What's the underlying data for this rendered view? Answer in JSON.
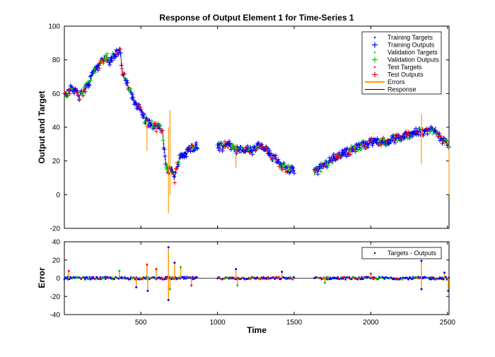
{
  "chart_data": [
    {
      "type": "scatter",
      "title": "Response of Output Element 1 for Time-Series 1",
      "xlabel": "",
      "ylabel": "Output and Target",
      "xlim": [
        1,
        2510
      ],
      "ylim": [
        -20,
        100
      ],
      "x_ticks": [],
      "y_ticks": [
        -20,
        0,
        20,
        40,
        60,
        80,
        100
      ],
      "grid": false,
      "legend_position": "top-right",
      "legend": [
        {
          "label": "Training Targets",
          "marker": "dot",
          "color": "#0000ff"
        },
        {
          "label": "Training Outputs",
          "marker": "plus",
          "color": "#0000ff"
        },
        {
          "label": "Validation Targets",
          "marker": "dot",
          "color": "#00cc00"
        },
        {
          "label": "Validation Outputs",
          "marker": "plus",
          "color": "#00cc00"
        },
        {
          "label": "Test Targets",
          "marker": "dot",
          "color": "#ff0000"
        },
        {
          "label": "Test Outputs",
          "marker": "plus",
          "color": "#ff0000"
        },
        {
          "label": "Errors",
          "marker": "line",
          "color": "#ff9900"
        },
        {
          "label": "Response",
          "marker": "line",
          "color": "#000000"
        }
      ],
      "segments": [
        {
          "x": [
            1,
            25,
            50,
            80,
            100,
            130,
            160,
            190,
            220,
            250,
            280,
            300,
            320,
            350,
            365,
            380,
            400,
            420,
            450,
            480,
            500,
            530,
            560,
            590,
            620,
            640,
            660,
            680,
            700,
            720,
            740,
            760,
            790,
            820,
            850,
            870
          ],
          "y": [
            60,
            61,
            63,
            62,
            58,
            62,
            66,
            73,
            76,
            80,
            82,
            78,
            83,
            85,
            86,
            72,
            68,
            64,
            56,
            53,
            50,
            44,
            42,
            40,
            40,
            38,
            20,
            13,
            16,
            9,
            19,
            23,
            24,
            27,
            29,
            29
          ]
        },
        {
          "x": [
            1000,
            1030,
            1060,
            1090,
            1120,
            1150,
            1190,
            1230,
            1270,
            1310,
            1350,
            1380,
            1410,
            1440,
            1470,
            1500
          ],
          "y": [
            29,
            28,
            30,
            29,
            27,
            26,
            27,
            26,
            29,
            27,
            23,
            22,
            18,
            16,
            15,
            15
          ]
        },
        {
          "x": [
            1630,
            1660,
            1690,
            1720,
            1760,
            1800,
            1840,
            1880,
            1920,
            1960,
            2000,
            2050,
            2100,
            2150,
            2200,
            2250,
            2300,
            2340,
            2380,
            2420,
            2440,
            2460,
            2480,
            2510
          ],
          "y": [
            13,
            15,
            17,
            19,
            22,
            24,
            25,
            27,
            28,
            30,
            31,
            32,
            31,
            33,
            34,
            36,
            37,
            37,
            38,
            39,
            36,
            33,
            31,
            29
          ]
        }
      ]
    },
    {
      "type": "scatter",
      "title": "",
      "xlabel": "Time",
      "ylabel": "Error",
      "xlim": [
        1,
        2510
      ],
      "ylim": [
        -40,
        40
      ],
      "x_ticks": [
        500,
        1000,
        1500,
        2000,
        2500
      ],
      "y_ticks": [
        -40,
        -20,
        0,
        20,
        40
      ],
      "grid": false,
      "legend_position": "top-right",
      "legend": [
        {
          "label": "Targets - Outputs",
          "marker": "dot",
          "color": "#000000"
        }
      ],
      "segments_x": [
        [
          1,
          870
        ],
        [
          1000,
          1500
        ],
        [
          1630,
          2510
        ]
      ],
      "notable_errors": [
        {
          "x": 30,
          "y": 8
        },
        {
          "x": 360,
          "y": 8
        },
        {
          "x": 470,
          "y": -10
        },
        {
          "x": 540,
          "y": 15
        },
        {
          "x": 545,
          "y": -14
        },
        {
          "x": 600,
          "y": 10
        },
        {
          "x": 680,
          "y": 34
        },
        {
          "x": 680,
          "y": -24
        },
        {
          "x": 690,
          "y": -12
        },
        {
          "x": 720,
          "y": 17
        },
        {
          "x": 760,
          "y": 12
        },
        {
          "x": 830,
          "y": -8
        },
        {
          "x": 1120,
          "y": 10
        },
        {
          "x": 1130,
          "y": -8
        },
        {
          "x": 1420,
          "y": 7
        },
        {
          "x": 1700,
          "y": -5
        },
        {
          "x": 2000,
          "y": 5
        },
        {
          "x": 2330,
          "y": 19
        },
        {
          "x": 2330,
          "y": -12
        },
        {
          "x": 2480,
          "y": 6
        },
        {
          "x": 2505,
          "y": -14
        }
      ]
    }
  ],
  "colors": {
    "train": "#0000ff",
    "validation": "#00cc00",
    "test": "#ff0000",
    "errors": "#ff9900",
    "response": "#000000"
  }
}
